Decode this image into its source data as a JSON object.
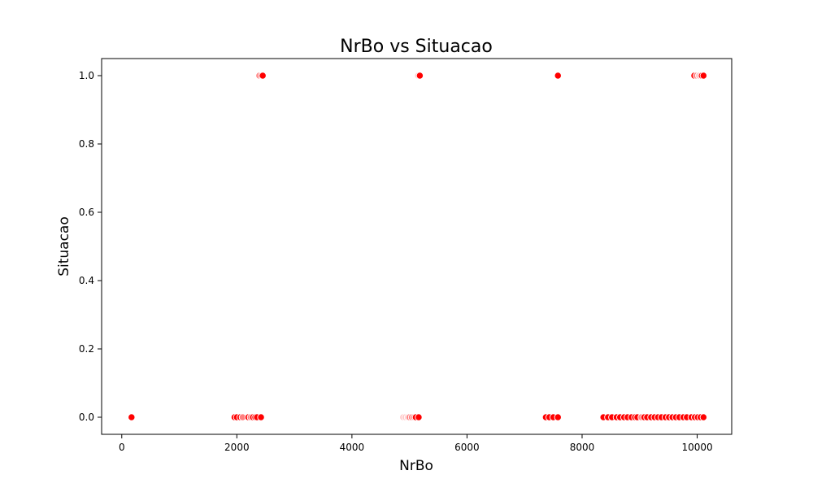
{
  "chart_data": {
    "type": "scatter",
    "title": "NrBo vs Situacao",
    "xlabel": "NrBo",
    "ylabel": "Situacao",
    "xlim": [
      -350,
      10600
    ],
    "ylim": [
      -0.05,
      1.05
    ],
    "xticks": [
      0,
      2000,
      4000,
      6000,
      8000,
      10000
    ],
    "yticks": [
      0.0,
      0.2,
      0.4,
      0.6,
      0.8,
      1.0
    ],
    "xtick_labels": [
      "0",
      "2000",
      "4000",
      "6000",
      "8000",
      "10000"
    ],
    "ytick_labels": [
      "0.0",
      "0.2",
      "0.4",
      "0.6",
      "0.8",
      "1.0"
    ],
    "grid": false,
    "legend": "none",
    "colors": {
      "strong": "#ff0000",
      "light": "#ffc8c8",
      "medium": "#ff8080"
    },
    "series": [
      {
        "points": [
          {
            "x": 170,
            "y": 0,
            "c": "strong"
          },
          {
            "x": 1960,
            "y": 0,
            "c": "strong"
          },
          {
            "x": 2000,
            "y": 0,
            "c": "strong"
          },
          {
            "x": 2060,
            "y": 0,
            "c": "strong"
          },
          {
            "x": 2100,
            "y": 0,
            "c": "medium"
          },
          {
            "x": 2200,
            "y": 0,
            "c": "strong"
          },
          {
            "x": 2240,
            "y": 0,
            "c": "medium"
          },
          {
            "x": 2280,
            "y": 0,
            "c": "strong"
          },
          {
            "x": 2320,
            "y": 0,
            "c": "strong"
          },
          {
            "x": 2350,
            "y": 0,
            "c": "strong"
          },
          {
            "x": 2420,
            "y": 0,
            "c": "strong"
          },
          {
            "x": 2390,
            "y": 1,
            "c": "medium"
          },
          {
            "x": 2430,
            "y": 1,
            "c": "strong"
          },
          {
            "x": 2450,
            "y": 1,
            "c": "strong"
          },
          {
            "x": 4890,
            "y": 0,
            "c": "light"
          },
          {
            "x": 4930,
            "y": 0,
            "c": "light"
          },
          {
            "x": 4970,
            "y": 0,
            "c": "light"
          },
          {
            "x": 5000,
            "y": 0,
            "c": "medium"
          },
          {
            "x": 5040,
            "y": 0,
            "c": "medium"
          },
          {
            "x": 5080,
            "y": 0,
            "c": "medium"
          },
          {
            "x": 5110,
            "y": 0,
            "c": "strong"
          },
          {
            "x": 5160,
            "y": 0,
            "c": "strong"
          },
          {
            "x": 5150,
            "y": 1,
            "c": "light"
          },
          {
            "x": 5180,
            "y": 1,
            "c": "strong"
          },
          {
            "x": 7370,
            "y": 0,
            "c": "strong"
          },
          {
            "x": 7430,
            "y": 0,
            "c": "strong"
          },
          {
            "x": 7500,
            "y": 0,
            "c": "strong"
          },
          {
            "x": 7580,
            "y": 0,
            "c": "strong"
          },
          {
            "x": 7580,
            "y": 1,
            "c": "strong"
          },
          {
            "x": 8370,
            "y": 0,
            "c": "strong"
          },
          {
            "x": 8450,
            "y": 0,
            "c": "strong"
          },
          {
            "x": 8520,
            "y": 0,
            "c": "strong"
          },
          {
            "x": 8600,
            "y": 0,
            "c": "strong"
          },
          {
            "x": 8660,
            "y": 0,
            "c": "strong"
          },
          {
            "x": 8730,
            "y": 0,
            "c": "strong"
          },
          {
            "x": 8790,
            "y": 0,
            "c": "strong"
          },
          {
            "x": 8860,
            "y": 0,
            "c": "strong"
          },
          {
            "x": 8920,
            "y": 0,
            "c": "strong"
          },
          {
            "x": 8960,
            "y": 0,
            "c": "strong"
          },
          {
            "x": 9030,
            "y": 0,
            "c": "medium"
          },
          {
            "x": 9080,
            "y": 0,
            "c": "strong"
          },
          {
            "x": 9130,
            "y": 0,
            "c": "strong"
          },
          {
            "x": 9200,
            "y": 0,
            "c": "strong"
          },
          {
            "x": 9260,
            "y": 0,
            "c": "strong"
          },
          {
            "x": 9320,
            "y": 0,
            "c": "strong"
          },
          {
            "x": 9380,
            "y": 0,
            "c": "strong"
          },
          {
            "x": 9450,
            "y": 0,
            "c": "strong"
          },
          {
            "x": 9510,
            "y": 0,
            "c": "strong"
          },
          {
            "x": 9570,
            "y": 0,
            "c": "strong"
          },
          {
            "x": 9630,
            "y": 0,
            "c": "strong"
          },
          {
            "x": 9690,
            "y": 0,
            "c": "strong"
          },
          {
            "x": 9760,
            "y": 0,
            "c": "strong"
          },
          {
            "x": 9820,
            "y": 0,
            "c": "strong"
          },
          {
            "x": 9900,
            "y": 0,
            "c": "strong"
          },
          {
            "x": 9960,
            "y": 0,
            "c": "strong"
          },
          {
            "x": 10010,
            "y": 0,
            "c": "strong"
          },
          {
            "x": 10060,
            "y": 0,
            "c": "strong"
          },
          {
            "x": 10110,
            "y": 0,
            "c": "strong"
          },
          {
            "x": 9950,
            "y": 1,
            "c": "strong"
          },
          {
            "x": 9990,
            "y": 1,
            "c": "medium"
          },
          {
            "x": 10030,
            "y": 1,
            "c": "light"
          },
          {
            "x": 10080,
            "y": 1,
            "c": "strong"
          },
          {
            "x": 10110,
            "y": 1,
            "c": "strong"
          }
        ]
      }
    ]
  }
}
